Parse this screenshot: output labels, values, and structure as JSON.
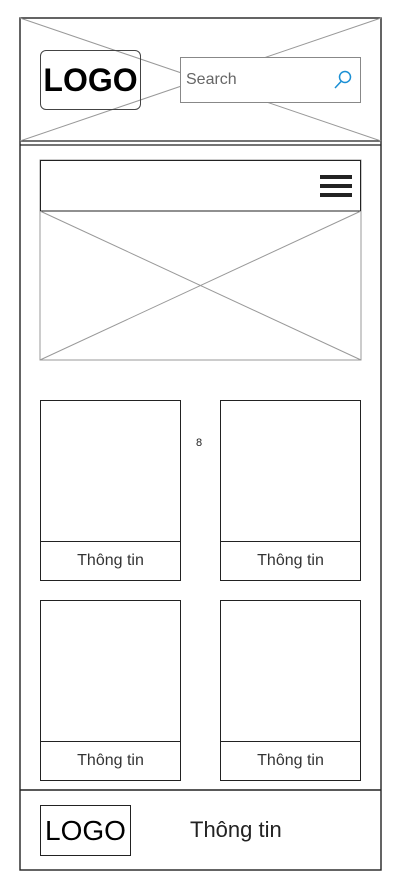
{
  "header": {
    "logo": "LOGO",
    "search_placeholder": "Search"
  },
  "nav": {
    "menu_icon": "hamburger-menu-icon"
  },
  "content": {
    "marker": "8",
    "cards": [
      {
        "label": "Thông tin"
      },
      {
        "label": "Thông tin"
      },
      {
        "label": "Thông tin"
      },
      {
        "label": "Thông tin"
      }
    ]
  },
  "footer": {
    "logo": "LOGO",
    "info": "Thông tin"
  },
  "colors": {
    "search_icon": "#1a8fd4",
    "stroke": "#222222",
    "placeholder_line": "#999999"
  }
}
